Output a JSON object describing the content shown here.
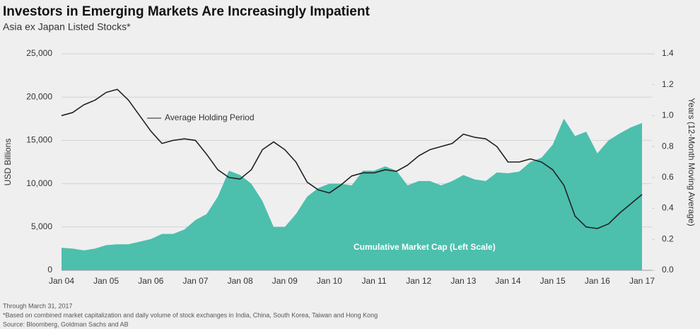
{
  "chart_data": {
    "type": "area-line",
    "title": "Investors in Emerging Markets Are Increasingly Impatient",
    "subtitle": "Asia ex Japan Listed Stocks*",
    "y_label": "USD Billions",
    "y2_label": "Years (12-Month Moving Average)",
    "categories": [
      "Jan 04",
      null,
      null,
      null,
      "Jan 05",
      null,
      null,
      null,
      "Jan 06",
      null,
      null,
      null,
      "Jan 07",
      null,
      null,
      null,
      "Jan 08",
      null,
      null,
      null,
      "Jan 09",
      null,
      null,
      null,
      "Jan 10",
      null,
      null,
      null,
      "Jan 11",
      null,
      null,
      null,
      "Jan 12",
      null,
      null,
      null,
      "Jan 13",
      null,
      null,
      null,
      "Jan 14",
      null,
      null,
      null,
      "Jan 15",
      null,
      null,
      null,
      "Jan 16",
      null,
      null,
      null,
      "Jan 17"
    ],
    "series": [
      {
        "name": "Cumulative Market Cap (Left Scale)",
        "color": "#4dbfad",
        "kind": "area",
        "values": [
          2600,
          2500,
          2300,
          2500,
          2900,
          3000,
          3000,
          3300,
          3600,
          4200,
          4200,
          4700,
          5800,
          6500,
          8500,
          11500,
          11000,
          10000,
          8000,
          5000,
          5000,
          6500,
          8500,
          9500,
          10000,
          10000,
          9800,
          11500,
          11500,
          12000,
          11500,
          9800,
          10300,
          10300,
          9800,
          10300,
          11000,
          10500,
          10300,
          11300,
          11200,
          11400,
          12500,
          13000,
          14500,
          17500,
          15500,
          16000,
          13500,
          15000,
          15800,
          16500,
          17000
        ]
      },
      {
        "name": "Average Holding Period",
        "color": "#222222",
        "kind": "line",
        "axis": "y2",
        "values": [
          1.0,
          1.02,
          1.07,
          1.1,
          1.15,
          1.17,
          1.1,
          1.0,
          0.9,
          0.82,
          0.84,
          0.85,
          0.84,
          0.75,
          0.65,
          0.6,
          0.59,
          0.65,
          0.78,
          0.83,
          0.78,
          0.7,
          0.57,
          0.52,
          0.5,
          0.55,
          0.61,
          0.63,
          0.63,
          0.65,
          0.64,
          0.68,
          0.74,
          0.78,
          0.8,
          0.82,
          0.88,
          0.86,
          0.85,
          0.8,
          0.7,
          0.7,
          0.72,
          0.7,
          0.65,
          0.55,
          0.35,
          0.28,
          0.27,
          0.3,
          0.37,
          0.43,
          0.49
        ]
      }
    ],
    "ylim": [
      0,
      25000
    ],
    "yticks": [
      0,
      {
        "value": 5000,
        "label": "5,000"
      },
      {
        "value": 10000,
        "label": "10,000"
      },
      {
        "value": 15000,
        "label": "15,000"
      },
      {
        "value": 20000,
        "label": "20,000"
      },
      {
        "value": 25000,
        "label": "25,000"
      }
    ],
    "y2lim": [
      0,
      1.4
    ],
    "y2ticks": [
      {
        "value": 0,
        "label": "0.0"
      },
      {
        "value": 0.2,
        "label": "0.2"
      },
      {
        "value": 0.4,
        "label": "0.4"
      },
      {
        "value": 0.6,
        "label": "0.6"
      },
      {
        "value": 0.8,
        "label": "0.8"
      },
      {
        "value": 1,
        "label": "1.0"
      },
      {
        "value": 1.2,
        "label": "1.2"
      },
      {
        "value": 1.4,
        "label": "1.4"
      }
    ],
    "grid": true,
    "notes": [
      "Through March 31, 2017",
      "*Based on combined market capitalization and daily volume of stock exchanges in India, China, South Korea, Taiwan and Hong Kong",
      "Source: Bloomberg, Goldman Sachs and AB"
    ]
  }
}
